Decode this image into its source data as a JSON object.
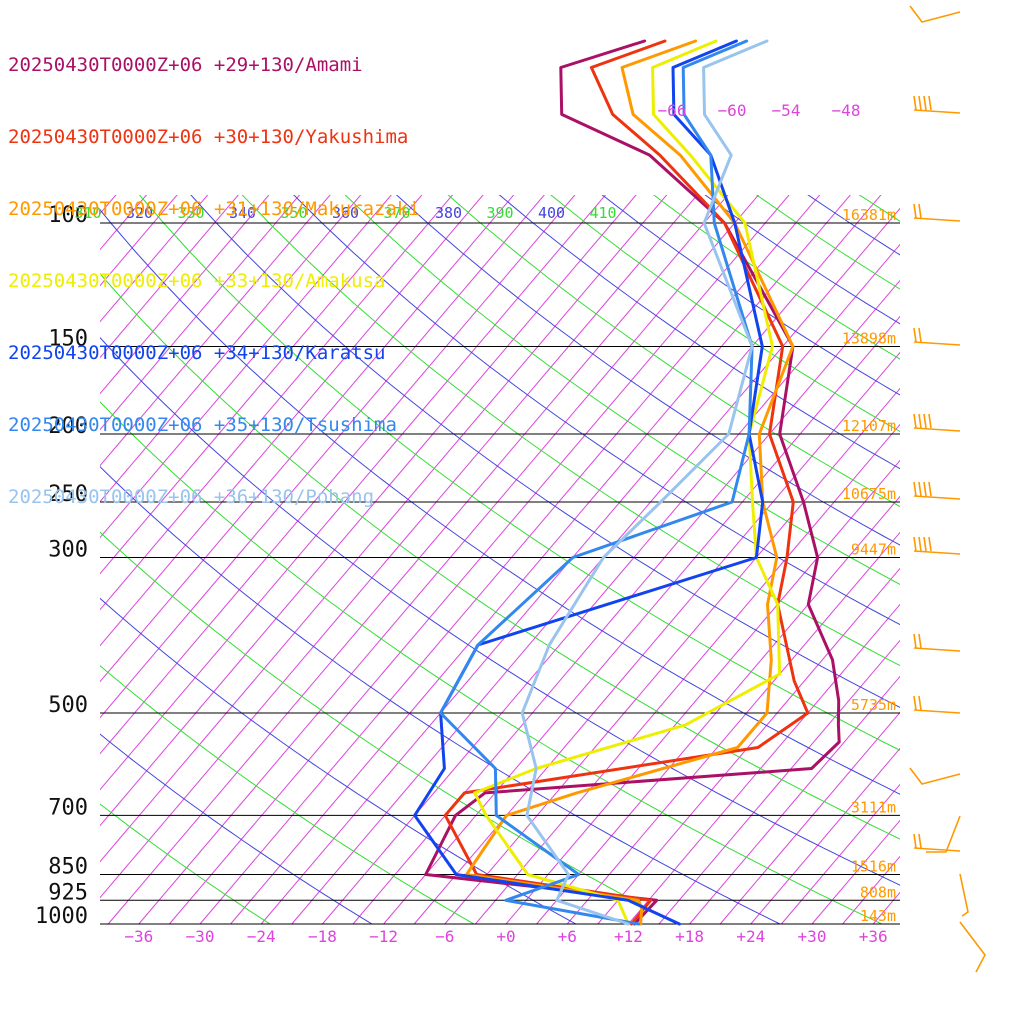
{
  "chart_data": {
    "type": "line",
    "title": "",
    "xlabel": "",
    "ylabel": "",
    "x_axis": {
      "ticks": [
        -36,
        -30,
        -24,
        -18,
        -12,
        -6,
        0,
        6,
        12,
        18,
        24,
        30,
        36
      ],
      "tick_labels": [
        "−36",
        "−30",
        "−24",
        "−18",
        "−12",
        "−6",
        "+0",
        "+6",
        "+12",
        "+18",
        "+24",
        "+30",
        "+36"
      ],
      "color": "#dd44dd"
    },
    "y_axis": {
      "scale": "log",
      "ticks": [
        100,
        150,
        200,
        250,
        300,
        500,
        700,
        850,
        925,
        1000
      ],
      "tick_labels": [
        "100",
        "150",
        "200",
        "250",
        "300",
        "500",
        "700",
        "850",
        "925",
        "1000"
      ]
    },
    "height_labels": [
      {
        "p": 100,
        "label": "16381m"
      },
      {
        "p": 150,
        "label": "13898m"
      },
      {
        "p": 200,
        "label": "12107m"
      },
      {
        "p": 250,
        "label": "10675m"
      },
      {
        "p": 300,
        "label": "9447m"
      },
      {
        "p": 500,
        "label": "5735m"
      },
      {
        "p": 700,
        "label": "3111m"
      },
      {
        "p": 850,
        "label": "1516m"
      },
      {
        "p": 925,
        "label": "808m"
      },
      {
        "p": 1000,
        "label": "143m"
      }
    ],
    "isotherm_labels": [
      "−66",
      "−60",
      "−54",
      "−48"
    ],
    "theta_labels": [
      {
        "value": "310",
        "color": "#33dd33"
      },
      {
        "value": "320",
        "color": "#4444dd"
      },
      {
        "value": "330",
        "color": "#33dd33"
      },
      {
        "value": "340",
        "color": "#4444dd"
      },
      {
        "value": "350",
        "color": "#33dd33"
      },
      {
        "value": "360",
        "color": "#4444dd"
      },
      {
        "value": "370",
        "color": "#33dd33"
      },
      {
        "value": "380",
        "color": "#4444dd"
      },
      {
        "value": "390",
        "color": "#33dd33"
      },
      {
        "value": "400",
        "color": "#4444dd"
      },
      {
        "value": "410",
        "color": "#33dd33"
      }
    ],
    "series": [
      {
        "name": "20250430T0000Z+06 +29+130/Amami",
        "color": "#aa1166",
        "values": [
          [
            1000,
            12.6
          ],
          [
            925,
            12.8
          ],
          [
            850,
            -12
          ],
          [
            700,
            -14
          ],
          [
            650,
            -13
          ],
          [
            600,
            17
          ],
          [
            550,
            17.5
          ],
          [
            520,
            16
          ],
          [
            480,
            14
          ],
          [
            420,
            10
          ],
          [
            350,
            3
          ],
          [
            300,
            0
          ],
          [
            250,
            -6
          ],
          [
            200,
            -14
          ],
          [
            150,
            -20
          ],
          [
            100,
            -37
          ],
          [
            80,
            -50
          ],
          [
            70,
            -62
          ],
          [
            60,
            -66
          ],
          [
            55,
            -60
          ]
        ]
      },
      {
        "name": "20250430T0000Z+06 +30+130/Yakushima",
        "color": "#ee3311",
        "values": [
          [
            1000,
            12.3
          ],
          [
            925,
            12.2
          ],
          [
            850,
            -7
          ],
          [
            700,
            -15
          ],
          [
            650,
            -15
          ],
          [
            560,
            10
          ],
          [
            500,
            12
          ],
          [
            450,
            8
          ],
          [
            350,
            0
          ],
          [
            300,
            -3
          ],
          [
            250,
            -7
          ],
          [
            200,
            -15
          ],
          [
            150,
            -21
          ],
          [
            100,
            -37
          ],
          [
            80,
            -49
          ],
          [
            70,
            -57
          ],
          [
            60,
            -63
          ],
          [
            55,
            -58
          ]
        ]
      },
      {
        "name": "20250430T0000Z+06 +31+130/Makurazaki",
        "color": "#ff9900",
        "values": [
          [
            1000,
            13.2
          ],
          [
            950,
            12
          ],
          [
            925,
            11
          ],
          [
            850,
            -8
          ],
          [
            700,
            -9
          ],
          [
            650,
            -4
          ],
          [
            560,
            8
          ],
          [
            500,
            8
          ],
          [
            420,
            4
          ],
          [
            350,
            -1
          ],
          [
            300,
            -4
          ],
          [
            250,
            -10
          ],
          [
            200,
            -16
          ],
          [
            150,
            -20
          ],
          [
            100,
            -36
          ],
          [
            80,
            -47
          ],
          [
            70,
            -55
          ],
          [
            60,
            -60
          ],
          [
            55,
            -55
          ]
        ]
      },
      {
        "name": "20250430T0000Z+06 +33+130/Amakusa",
        "color": "#eeee00",
        "values": [
          [
            1000,
            12
          ],
          [
            925,
            9
          ],
          [
            850,
            -2
          ],
          [
            700,
            -11
          ],
          [
            650,
            -14
          ],
          [
            600,
            -10
          ],
          [
            520,
            1
          ],
          [
            440,
            6
          ],
          [
            350,
            0
          ],
          [
            300,
            -6
          ],
          [
            250,
            -11
          ],
          [
            200,
            -17
          ],
          [
            150,
            -22
          ],
          [
            100,
            -35
          ],
          [
            80,
            -46
          ],
          [
            70,
            -53
          ],
          [
            60,
            -57
          ],
          [
            55,
            -53
          ]
        ]
      },
      {
        "name": "20250430T0000Z+06 +34+130/Karatsu",
        "color": "#1144ee",
        "values": [
          [
            1000,
            17
          ],
          [
            925,
            10
          ],
          [
            850,
            -9
          ],
          [
            700,
            -18
          ],
          [
            600,
            -19
          ],
          [
            500,
            -24
          ],
          [
            400,
            -26
          ],
          [
            300,
            -6
          ],
          [
            250,
            -10
          ],
          [
            200,
            -17
          ],
          [
            150,
            -23
          ],
          [
            100,
            -36
          ],
          [
            80,
            -44
          ],
          [
            70,
            -51
          ],
          [
            60,
            -55
          ],
          [
            55,
            -51
          ]
        ]
      },
      {
        "name": "20250430T0000Z+06 +35+130/Tsushima",
        "color": "#3388ee",
        "values": [
          [
            1000,
            13
          ],
          [
            925,
            -2
          ],
          [
            850,
            3
          ],
          [
            700,
            -10
          ],
          [
            600,
            -14
          ],
          [
            500,
            -24
          ],
          [
            400,
            -26
          ],
          [
            300,
            -24
          ],
          [
            250,
            -13
          ],
          [
            200,
            -17
          ],
          [
            150,
            -24
          ],
          [
            100,
            -38
          ],
          [
            80,
            -44
          ],
          [
            70,
            -50
          ],
          [
            60,
            -54
          ],
          [
            55,
            -50
          ]
        ]
      },
      {
        "name": "20250430T0000Z+06 +36+130/Pohang",
        "color": "#99c4ee",
        "values": [
          [
            1000,
            12
          ],
          [
            925,
            3
          ],
          [
            850,
            2
          ],
          [
            700,
            -7
          ],
          [
            600,
            -10
          ],
          [
            500,
            -16
          ],
          [
            400,
            -19
          ],
          [
            300,
            -21
          ],
          [
            250,
            -20
          ],
          [
            200,
            -19
          ],
          [
            150,
            -24
          ],
          [
            100,
            -39
          ],
          [
            80,
            -42
          ],
          [
            70,
            -48
          ],
          [
            60,
            -52
          ],
          [
            55,
            -48
          ]
        ]
      }
    ],
    "wind_barbs_color": "#ff9900",
    "colors": {
      "isotherm": "#dd44dd",
      "theta_dry": "#4444dd",
      "theta_moist": "#33dd33",
      "pressure_line": "#000000",
      "height_label": "#ff9900"
    }
  }
}
